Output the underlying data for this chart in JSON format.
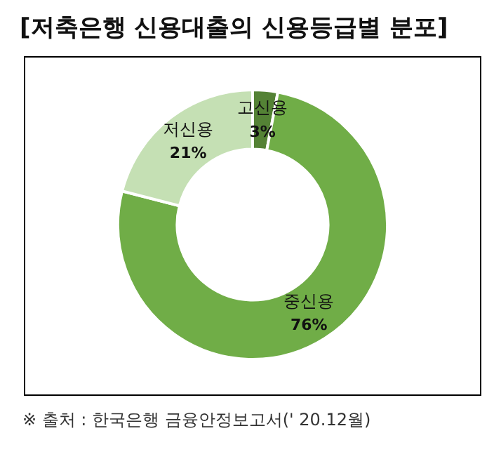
{
  "chart_data": {
    "type": "donut",
    "title": "[저축은행 신용대출의 신용등급별 분포]",
    "categories": [
      "고신용",
      "중신용",
      "저신용"
    ],
    "values": [
      3,
      76,
      21
    ],
    "colors": [
      "#548235",
      "#70ad47",
      "#c5e0b4"
    ],
    "value_labels": [
      "3%",
      "76%",
      "21%"
    ],
    "legend": false,
    "annotations": [
      "※ 출처 : 한국은행 금융안정보고서(' 20.12월)"
    ]
  }
}
